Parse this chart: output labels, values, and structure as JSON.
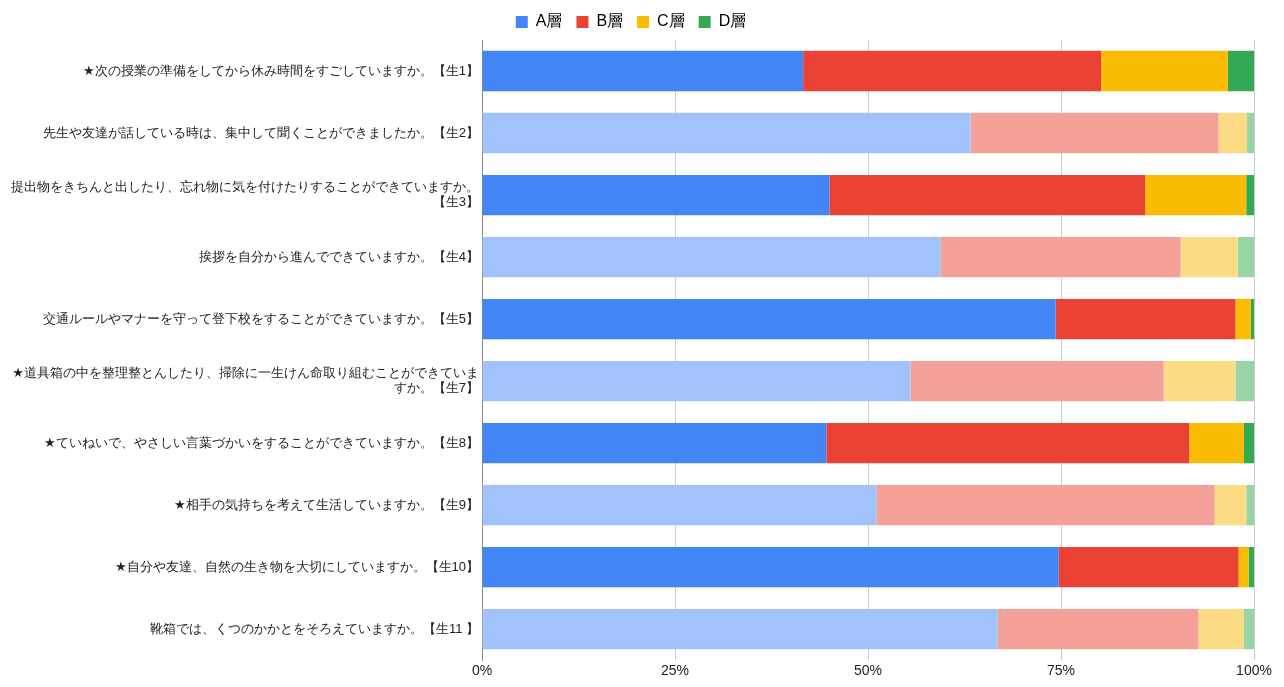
{
  "chart_data": {
    "type": "bar",
    "orientation": "horizontal",
    "stacked": true,
    "categories": [
      "★次の授業の準備をしてから休み時間をすごしていますか。【生1】",
      "先生や友達が話している時は、集中して聞くことができましたか。【生2】",
      "提出物をきちんと出したり、忘れ物に気を付けたりすることができていますか。【生3】",
      "挨拶を自分から進んでできていますか。【生4】",
      "交通ルールやマナーを守って登下校をすることができていますか。【生5】",
      "★道具箱の中を整理整とんしたり、掃除に一生けん命取り組むことができていますか。【生7】",
      "★ていねいで、やさしい言葉づかいをすることができていますか。【生8】",
      "★相手の気持ちを考えて生活していますか。【生9】",
      "★自分や友達、自然の生き物を大切にしていますか。【生10】",
      "靴箱では、くつのかかとをそろえていますか。【生11 】"
    ],
    "series": [
      {
        "name": "A層",
        "color": "#4285f4",
        "colors": [
          "#4285f4",
          "#a1c2fa",
          "#4285f4",
          "#a1c2fa",
          "#4285f4",
          "#a1c2fa",
          "#4285f4",
          "#a1c2fa",
          "#4285f4",
          "#a1c2fa"
        ],
        "values": [
          41.6,
          63.3,
          45.0,
          59.4,
          74.3,
          55.5,
          44.6,
          51.1,
          74.7,
          66.8
        ]
      },
      {
        "name": "B層",
        "color": "#ea4335",
        "colors": [
          "#ea4335",
          "#f4a19a",
          "#ea4335",
          "#f4a19a",
          "#ea4335",
          "#f4a19a",
          "#ea4335",
          "#f4a19a",
          "#ea4335",
          "#f4a19a"
        ],
        "values": [
          38.6,
          32.1,
          40.9,
          31.1,
          23.3,
          32.8,
          47.0,
          43.8,
          23.3,
          26.0
        ]
      },
      {
        "name": "C層",
        "color": "#fbbc04",
        "colors": [
          "#fbbc04",
          "#fbdc85",
          "#fbbc04",
          "#fbdc85",
          "#fbbc04",
          "#fbdc85",
          "#fbbc04",
          "#fbdc85",
          "#fbbc04",
          "#fbdc85"
        ],
        "values": [
          16.4,
          3.7,
          13.1,
          7.4,
          2.0,
          9.3,
          7.1,
          4.1,
          1.3,
          5.9
        ]
      },
      {
        "name": "D層",
        "color": "#34a853",
        "colors": [
          "#34a853",
          "#99d4a7",
          "#34a853",
          "#99d4a7",
          "#34a853",
          "#99d4a7",
          "#34a853",
          "#99d4a7",
          "#34a853",
          "#99d4a7"
        ],
        "values": [
          3.4,
          0.9,
          1.0,
          2.1,
          0.4,
          2.4,
          1.3,
          1.0,
          0.7,
          1.3
        ]
      }
    ],
    "xlim": [
      0,
      100
    ],
    "xticks": [
      {
        "value": 0,
        "label": "0%"
      },
      {
        "value": 25,
        "label": "25%"
      },
      {
        "value": 50,
        "label": "50%"
      },
      {
        "value": 75,
        "label": "75%"
      },
      {
        "value": 100,
        "label": "100%"
      }
    ],
    "grid": "x",
    "legend": "top"
  }
}
